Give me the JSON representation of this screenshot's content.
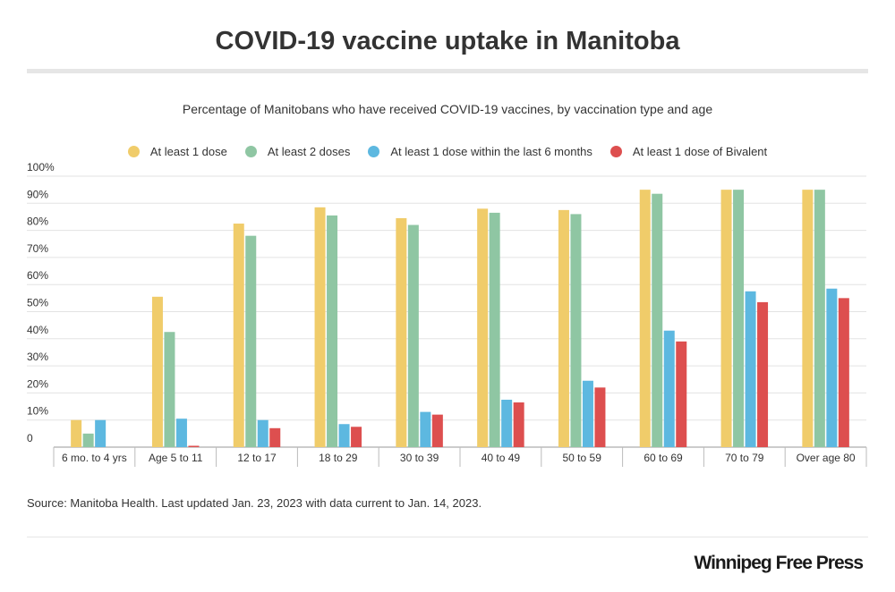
{
  "header": {
    "title": "COVID-19 vaccine uptake in Manitoba",
    "subtitle": "Percentage of Manitobans who have received COVID-19 vaccines, by vaccination type and age"
  },
  "legend": [
    {
      "label": "At least 1 dose",
      "color": "#f0cc6a"
    },
    {
      "label": "At least 2 doses",
      "color": "#8fc6a3"
    },
    {
      "label": "At least 1 dose within the last 6 months",
      "color": "#5db8e0"
    },
    {
      "label": "At least 1 dose of Bivalent",
      "color": "#dd4f4f"
    }
  ],
  "chart_data": {
    "type": "bar",
    "categories": [
      "6 mo. to 4 yrs",
      "Age 5 to 11",
      "12 to 17",
      "18 to 29",
      "30 to 39",
      "40 to 49",
      "50 to 59",
      "60 to 69",
      "70 to 79",
      "Over age 80"
    ],
    "series": [
      {
        "name": "At least 1 dose",
        "color": "#f0cc6a",
        "values": [
          10,
          55.5,
          82.5,
          88.5,
          84.5,
          88,
          87.5,
          95,
          95,
          95
        ]
      },
      {
        "name": "At least 2 doses",
        "color": "#8fc6a3",
        "values": [
          5,
          42.5,
          78,
          85.5,
          82,
          86.5,
          86,
          93.5,
          95,
          95
        ]
      },
      {
        "name": "At least 1 dose within the last 6 months",
        "color": "#5db8e0",
        "values": [
          10,
          10.5,
          10,
          8.5,
          13,
          17.5,
          24.5,
          43,
          57.5,
          58.5
        ]
      },
      {
        "name": "At least 1 dose of Bivalent",
        "color": "#dd4f4f",
        "values": [
          0,
          0.5,
          7,
          7.5,
          12,
          16.5,
          22,
          39,
          53.5,
          55
        ]
      }
    ],
    "y_ticks": [
      "0",
      "10%",
      "20%",
      "30%",
      "40%",
      "50%",
      "60%",
      "70%",
      "80%",
      "90%",
      "100%"
    ],
    "ylim": [
      0,
      100
    ],
    "xlabel": "",
    "ylabel": "",
    "grid": true,
    "legend_position": "top"
  },
  "source": "Source: Manitoba Health. Last updated Jan. 23, 2023 with data current to Jan. 14, 2023.",
  "logo": "Winnipeg Free Press"
}
